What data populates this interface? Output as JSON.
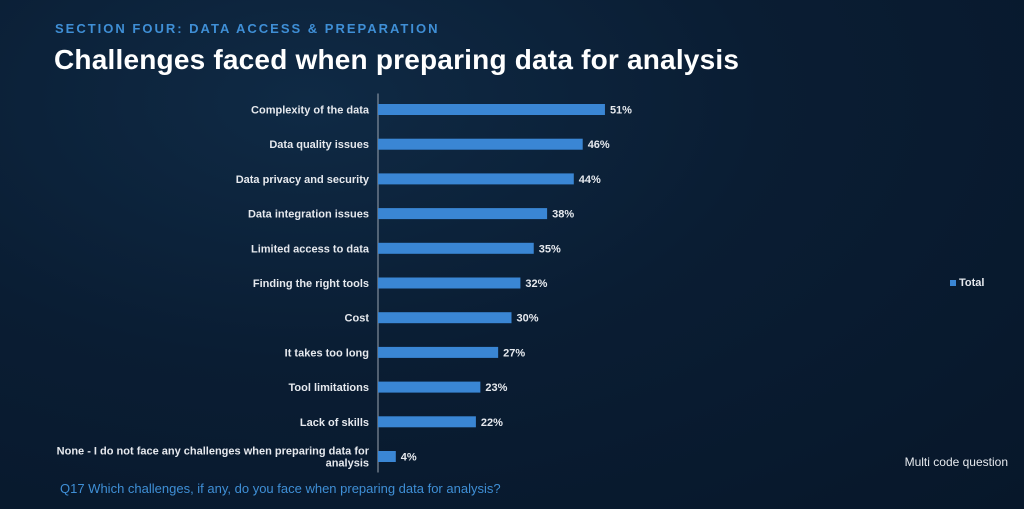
{
  "header": {
    "section": "SECTION FOUR: DATA ACCESS & PREPARATION",
    "title": "Challenges faced when preparing data for analysis"
  },
  "legend": {
    "label": "Total"
  },
  "note": "Multi code question",
  "question": "Q17  Which challenges, if any, do you face when preparing data for analysis?",
  "colors": {
    "bar": "#3a86d4",
    "axis": "#9aa4b0",
    "text": "#e6e9ee"
  },
  "chart_data": {
    "type": "bar",
    "orientation": "horizontal",
    "categories": [
      "Complexity of the data",
      "Data quality issues",
      "Data privacy and security",
      "Data integration issues",
      "Limited access to data",
      "Finding the right tools",
      "Cost",
      "It takes too long",
      "Tool limitations",
      "Lack of skills",
      "None - I do not face any challenges when preparing data for analysis"
    ],
    "category_lines": [
      [
        "Complexity of the data"
      ],
      [
        "Data quality issues"
      ],
      [
        "Data privacy and security"
      ],
      [
        "Data integration issues"
      ],
      [
        "Limited access to data"
      ],
      [
        "Finding the right tools"
      ],
      [
        "Cost"
      ],
      [
        "It takes too long"
      ],
      [
        "Tool limitations"
      ],
      [
        "Lack of skills"
      ],
      [
        "None - I do not face any challenges when preparing data for",
        "analysis"
      ]
    ],
    "series": [
      {
        "name": "Total",
        "values": [
          51,
          46,
          44,
          38,
          35,
          32,
          30,
          27,
          23,
          22,
          4
        ]
      }
    ],
    "value_labels": [
      "51%",
      "46%",
      "44%",
      "38%",
      "35%",
      "32%",
      "30%",
      "27%",
      "23%",
      "22%",
      "4%"
    ],
    "xlim": [
      0,
      100
    ],
    "grid": false,
    "legend_position": "right"
  }
}
